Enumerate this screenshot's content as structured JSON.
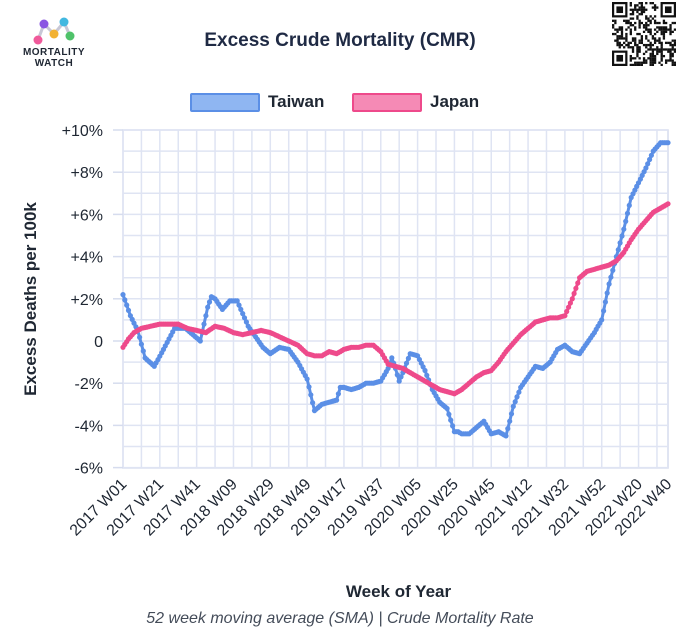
{
  "logo": {
    "line1": "MORTALITY",
    "line2": "WATCH"
  },
  "title": "Excess Crude Mortality (CMR)",
  "footnote": "52 week moving average (SMA) | Crude Mortality Rate",
  "legend": [
    {
      "name": "Taiwan",
      "color": "#5b8fe6"
    },
    {
      "name": "Japan",
      "color": "#ee4a8b"
    }
  ],
  "chart_data": {
    "type": "line",
    "title": "Excess Crude Mortality (CMR)",
    "xlabel": "Week of Year",
    "ylabel": "Excess Deaths per 100k",
    "ylim": [
      -6.5,
      10
    ],
    "yticks": [
      10,
      8,
      6,
      4,
      2,
      0,
      -2,
      -4,
      -6
    ],
    "ytick_labels": [
      "+10%",
      "+8%",
      "+6%",
      "+4%",
      "+2%",
      "0",
      "-2%",
      "-4%",
      "-6%"
    ],
    "xlim": [
      0,
      296
    ],
    "xticks": [
      0,
      20,
      40,
      60,
      80,
      100,
      120,
      140,
      160,
      180,
      200,
      220,
      240,
      260,
      280,
      296
    ],
    "xtick_labels": [
      "2017 W01",
      "2017 W21",
      "2017 W41",
      "2018 W09",
      "2018 W29",
      "2018 W49",
      "2019 W17",
      "2019 W37",
      "2020 W05",
      "2020 W25",
      "2020 W45",
      "2021 W12",
      "2021 W32",
      "2021 W52",
      "2022 W20",
      "2022 W40"
    ],
    "grid": true,
    "series": [
      {
        "name": "Taiwan",
        "color": "#5b8fe6",
        "x": [
          0,
          4,
          8,
          12,
          17,
          22,
          28,
          34,
          38,
          42,
          46,
          48,
          50,
          54,
          58,
          62,
          65,
          68,
          72,
          76,
          80,
          85,
          90,
          95,
          100,
          104,
          108,
          112,
          116,
          118,
          120,
          124,
          128,
          132,
          136,
          140,
          144,
          146,
          148,
          150,
          152,
          156,
          160,
          164,
          168,
          172,
          176,
          180,
          182,
          184,
          188,
          192,
          196,
          200,
          204,
          208,
          212,
          216,
          220,
          224,
          228,
          232,
          236,
          240,
          244,
          248,
          252,
          256,
          260,
          264,
          268,
          272,
          276,
          280,
          284,
          288,
          292,
          296
        ],
        "values": [
          2.2,
          1.2,
          0.5,
          -0.8,
          -1.2,
          -0.4,
          0.6,
          0.6,
          0.3,
          0.0,
          1.6,
          2.1,
          2.0,
          1.5,
          1.9,
          1.9,
          1.3,
          0.7,
          0.2,
          -0.3,
          -0.6,
          -0.3,
          -0.4,
          -1.0,
          -1.8,
          -3.3,
          -3.0,
          -2.9,
          -2.8,
          -2.2,
          -2.2,
          -2.3,
          -2.2,
          -2.0,
          -2.0,
          -1.9,
          -1.3,
          -0.8,
          -1.3,
          -1.9,
          -1.5,
          -0.6,
          -0.7,
          -1.4,
          -2.3,
          -2.9,
          -3.2,
          -4.3,
          -4.3,
          -4.4,
          -4.4,
          -4.1,
          -3.8,
          -4.4,
          -4.3,
          -4.5,
          -3.1,
          -2.2,
          -1.7,
          -1.2,
          -1.3,
          -1.0,
          -0.4,
          -0.2,
          -0.5,
          -0.6,
          -0.1,
          0.4,
          1.0,
          2.7,
          4.0,
          5.3,
          6.8,
          7.5,
          8.2,
          9.0,
          9.4,
          9.4
        ]
      },
      {
        "name": "Japan",
        "color": "#ee4a8b",
        "x": [
          0,
          3,
          6,
          10,
          15,
          20,
          25,
          30,
          35,
          40,
          45,
          50,
          55,
          60,
          65,
          70,
          75,
          80,
          85,
          90,
          95,
          100,
          104,
          108,
          112,
          116,
          120,
          124,
          128,
          132,
          136,
          140,
          144,
          148,
          152,
          156,
          160,
          164,
          168,
          172,
          176,
          180,
          184,
          188,
          192,
          196,
          200,
          204,
          208,
          212,
          216,
          220,
          224,
          228,
          232,
          236,
          240,
          244,
          248,
          252,
          256,
          260,
          264,
          268,
          272,
          276,
          280,
          284,
          288,
          292,
          296
        ],
        "values": [
          -0.3,
          0.1,
          0.4,
          0.6,
          0.7,
          0.8,
          0.8,
          0.8,
          0.6,
          0.5,
          0.4,
          0.7,
          0.6,
          0.4,
          0.3,
          0.4,
          0.5,
          0.4,
          0.2,
          0.0,
          -0.2,
          -0.6,
          -0.7,
          -0.7,
          -0.5,
          -0.6,
          -0.4,
          -0.3,
          -0.3,
          -0.2,
          -0.2,
          -0.5,
          -1.1,
          -1.2,
          -1.3,
          -1.5,
          -1.7,
          -1.9,
          -2.1,
          -2.3,
          -2.4,
          -2.5,
          -2.3,
          -2.0,
          -1.7,
          -1.5,
          -1.4,
          -1.0,
          -0.5,
          -0.1,
          0.3,
          0.6,
          0.9,
          1.0,
          1.1,
          1.1,
          1.2,
          2.0,
          3.0,
          3.3,
          3.4,
          3.5,
          3.6,
          3.8,
          4.2,
          4.8,
          5.3,
          5.7,
          6.1,
          6.3,
          6.5
        ]
      }
    ]
  }
}
